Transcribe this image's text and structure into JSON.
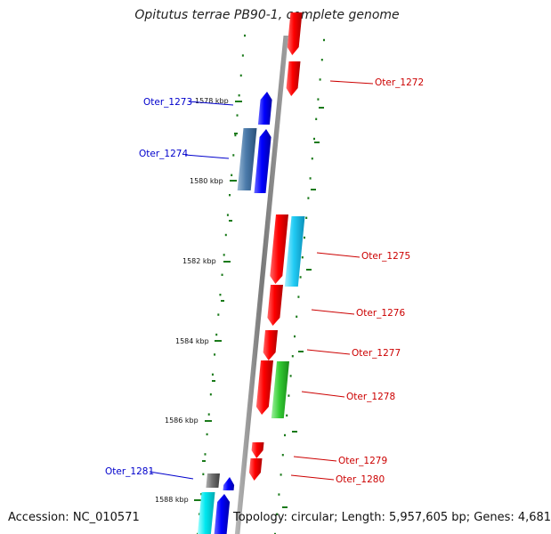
{
  "title": "Opitutus terrae PB90-1, complete genome",
  "footer": {
    "accession": "Accession: NC_010571",
    "topology": "Topology: circular; Length: 5,957,605 bp; Genes: 4,681"
  },
  "colors": {
    "forward": "#ff0000",
    "reverse": "#0000ff",
    "backbone": "#8a8a8a",
    "ticks": "#1a7a1a",
    "label_forward": "#cc0000",
    "label_reverse": "#0000cc"
  },
  "kbp_marks": [
    "1578 kbp",
    "1580 kbp",
    "1582 kbp",
    "1584 kbp",
    "1586 kbp",
    "1588 kbp"
  ],
  "genes": [
    {
      "label": "Oter_1272",
      "strand": "forward"
    },
    {
      "label": "Oter_1273",
      "strand": "reverse"
    },
    {
      "label": "Oter_1274",
      "strand": "reverse"
    },
    {
      "label": "Oter_1275",
      "strand": "forward"
    },
    {
      "label": "Oter_1276",
      "strand": "forward"
    },
    {
      "label": "Oter_1277",
      "strand": "forward"
    },
    {
      "label": "Oter_1278",
      "strand": "forward"
    },
    {
      "label": "Oter_1279",
      "strand": "forward"
    },
    {
      "label": "Oter_1280",
      "strand": "forward"
    },
    {
      "label": "Oter_1281",
      "strand": "reverse"
    }
  ]
}
